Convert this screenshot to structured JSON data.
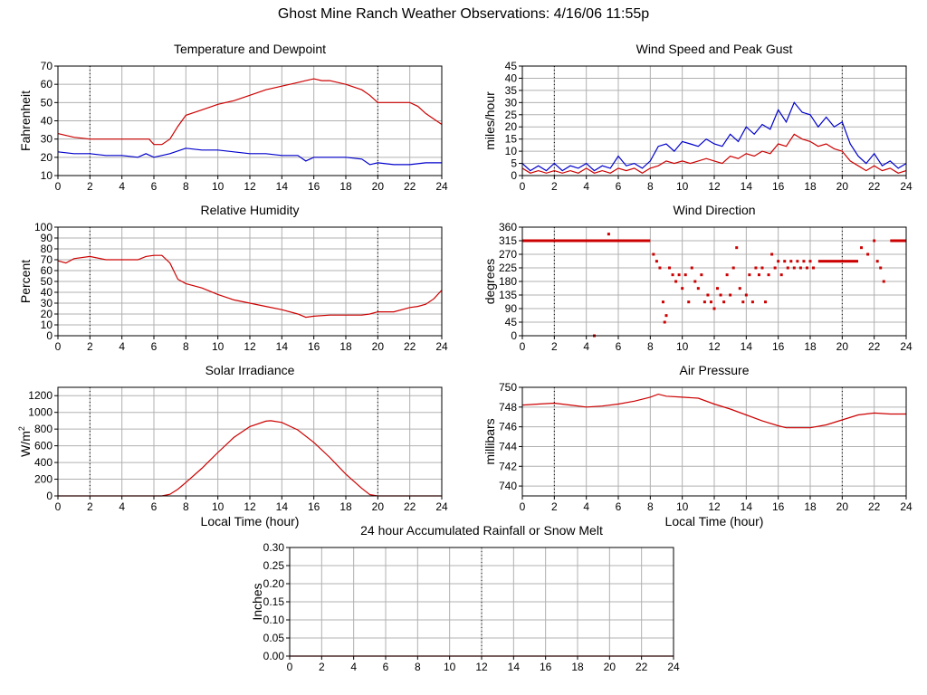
{
  "page_title": "Ghost Mine Ranch Weather Observations: 4/16/06 11:55p",
  "colors": {
    "primary": "#cc0000",
    "secondary": "#0000cc",
    "grid": "#b0b0b0",
    "axis": "#000000"
  },
  "chart_data": [
    {
      "id": "temp",
      "type": "line",
      "title": "Temperature and Dewpoint",
      "xlabel": "",
      "ylabel": "Fahrenheit",
      "xlim": [
        0,
        24
      ],
      "ylim": [
        10,
        70
      ],
      "xticks": [
        "0",
        "2",
        "4",
        "6",
        "8",
        "10",
        "12",
        "14",
        "16",
        "18",
        "20",
        "22",
        "24"
      ],
      "yticks": [
        "10",
        "20",
        "30",
        "40",
        "50",
        "60",
        "70"
      ],
      "grid": true,
      "series": [
        {
          "color": "#cc0000",
          "x": [
            0,
            1,
            2,
            3,
            4,
            5,
            5.7,
            6,
            6.5,
            7,
            7.5,
            8,
            9,
            10,
            11,
            12,
            13,
            14,
            15,
            15.5,
            16,
            16.5,
            17,
            18,
            19,
            19.5,
            20,
            21,
            22,
            22.5,
            23,
            23.5,
            24
          ],
          "y": [
            33,
            31,
            30,
            30,
            30,
            30,
            30,
            27,
            27,
            30,
            37,
            43,
            46,
            49,
            51,
            54,
            57,
            59,
            61,
            62,
            63,
            62,
            62,
            60,
            57,
            54,
            50,
            50,
            50,
            48,
            44,
            41,
            38
          ]
        },
        {
          "color": "#0000cc",
          "x": [
            0,
            1,
            2,
            3,
            4,
            5,
            5.5,
            6,
            7,
            8,
            9,
            10,
            11,
            12,
            13,
            14,
            15,
            15.5,
            16,
            17,
            18,
            19,
            19.5,
            20,
            21,
            22,
            23,
            24
          ],
          "y": [
            23,
            22,
            22,
            21,
            21,
            20,
            22,
            20,
            22,
            25,
            24,
            24,
            23,
            22,
            22,
            21,
            21,
            18,
            20,
            20,
            20,
            19,
            16,
            17,
            16,
            16,
            17,
            17
          ]
        }
      ]
    },
    {
      "id": "wind",
      "type": "line",
      "title": "Wind Speed and Peak Gust",
      "xlabel": "",
      "ylabel": "miles/hour",
      "xlim": [
        0,
        24
      ],
      "ylim": [
        0,
        45
      ],
      "xticks": [
        "0",
        "2",
        "4",
        "6",
        "8",
        "10",
        "12",
        "14",
        "16",
        "18",
        "20",
        "22",
        "24"
      ],
      "yticks": [
        "0",
        "5",
        "10",
        "15",
        "20",
        "25",
        "30",
        "35",
        "40",
        "45"
      ],
      "grid": true,
      "series": [
        {
          "color": "#0000cc",
          "x": [
            0,
            0.5,
            1,
            1.5,
            2,
            2.5,
            3,
            3.5,
            4,
            4.5,
            5,
            5.5,
            6,
            6.5,
            7,
            7.5,
            8,
            8.5,
            9,
            9.5,
            10,
            10.5,
            11,
            11.5,
            12,
            12.5,
            13,
            13.5,
            14,
            14.5,
            15,
            15.5,
            16,
            16.5,
            17,
            17.5,
            18,
            18.5,
            19,
            19.5,
            20,
            20.5,
            21,
            21.5,
            22,
            22.5,
            23,
            23.5,
            24
          ],
          "y": [
            5,
            2,
            4,
            2,
            5,
            2,
            4,
            3,
            5,
            2,
            4,
            3,
            8,
            4,
            5,
            3,
            6,
            12,
            13,
            10,
            14,
            13,
            12,
            15,
            13,
            12,
            17,
            14,
            20,
            17,
            21,
            19,
            27,
            22,
            30,
            26,
            25,
            20,
            24,
            20,
            22,
            13,
            8,
            5,
            9,
            4,
            6,
            3,
            5
          ]
        },
        {
          "color": "#cc0000",
          "x": [
            0,
            0.5,
            1,
            1.5,
            2,
            2.5,
            3,
            3.5,
            4,
            4.5,
            5,
            5.5,
            6,
            6.5,
            7,
            7.5,
            8,
            8.5,
            9,
            9.5,
            10,
            10.5,
            11,
            11.5,
            12,
            12.5,
            13,
            13.5,
            14,
            14.5,
            15,
            15.5,
            16,
            16.5,
            17,
            17.5,
            18,
            18.5,
            19,
            19.5,
            20,
            20.5,
            21,
            21.5,
            22,
            22.5,
            23,
            23.5,
            24
          ],
          "y": [
            3,
            1,
            2,
            1,
            2,
            1,
            2,
            1,
            3,
            1,
            2,
            1,
            3,
            2,
            3,
            1,
            3,
            4,
            6,
            5,
            6,
            5,
            6,
            7,
            6,
            5,
            8,
            7,
            9,
            8,
            10,
            9,
            13,
            12,
            17,
            15,
            14,
            12,
            13,
            11,
            10,
            6,
            4,
            2,
            4,
            2,
            3,
            1,
            2
          ]
        }
      ]
    },
    {
      "id": "rh",
      "type": "line",
      "title": "Relative Humidity",
      "xlabel": "",
      "ylabel": "Percent",
      "xlim": [
        0,
        24
      ],
      "ylim": [
        0,
        100
      ],
      "xticks": [
        "0",
        "2",
        "4",
        "6",
        "8",
        "10",
        "12",
        "14",
        "16",
        "18",
        "20",
        "22",
        "24"
      ],
      "yticks": [
        "0",
        "10",
        "20",
        "30",
        "40",
        "50",
        "60",
        "70",
        "80",
        "90",
        "100"
      ],
      "grid": true,
      "series": [
        {
          "color": "#cc0000",
          "x": [
            0,
            0.5,
            1,
            2,
            3,
            4,
            5,
            5.5,
            6,
            6.5,
            7,
            7.5,
            8,
            9,
            10,
            11,
            12,
            13,
            14,
            15,
            15.5,
            16,
            17,
            18,
            19,
            19.5,
            20,
            21,
            22,
            22.5,
            23,
            23.5,
            24
          ],
          "y": [
            69,
            67,
            71,
            73,
            70,
            70,
            70,
            73,
            74,
            74,
            67,
            52,
            48,
            44,
            38,
            33,
            30,
            27,
            24,
            20,
            17,
            18,
            19,
            19,
            19,
            20,
            22,
            22,
            26,
            27,
            29,
            34,
            42
          ]
        }
      ]
    },
    {
      "id": "dir",
      "type": "scatter",
      "title": "Wind Direction",
      "xlabel": "",
      "ylabel": "degrees",
      "xlim": [
        0,
        24
      ],
      "ylim": [
        0,
        360
      ],
      "xticks": [
        "0",
        "2",
        "4",
        "6",
        "8",
        "10",
        "12",
        "14",
        "16",
        "18",
        "20",
        "22",
        "24"
      ],
      "yticks": [
        "0",
        "45",
        "90",
        "135",
        "180",
        "225",
        "270",
        "315",
        "360"
      ],
      "grid": true,
      "series": [
        {
          "color": "#cc0000",
          "x": [
            4.5,
            5.4,
            8.2,
            8.4,
            8.6,
            8.8,
            8.9,
            9.0,
            9.2,
            9.4,
            9.6,
            9.8,
            10.0,
            10.2,
            10.4,
            10.6,
            10.8,
            11.0,
            11.2,
            11.4,
            11.6,
            11.8,
            12.0,
            12.2,
            12.4,
            12.6,
            12.8,
            13.0,
            13.2,
            13.4,
            13.6,
            13.8,
            14.0,
            14.2,
            14.4,
            14.6,
            14.8,
            15.0,
            15.2,
            15.4,
            15.6,
            15.8,
            16.0,
            16.2,
            16.4,
            16.6,
            16.8,
            17.0,
            17.2,
            17.4,
            17.6,
            17.8,
            18.0,
            18.2,
            21.2,
            21.6,
            22.0,
            22.2,
            22.4,
            22.6
          ],
          "y": [
            0,
            337,
            270,
            247,
            225,
            112,
            45,
            67,
            225,
            202,
            180,
            202,
            157,
            202,
            112,
            225,
            180,
            157,
            202,
            112,
            135,
            112,
            90,
            157,
            135,
            112,
            202,
            135,
            225,
            292,
            157,
            112,
            135,
            202,
            112,
            225,
            202,
            225,
            112,
            202,
            270,
            225,
            247,
            202,
            247,
            225,
            247,
            225,
            247,
            225,
            247,
            225,
            247,
            225,
            292,
            270,
            315,
            247,
            225,
            180
          ]
        }
      ],
      "bands": [
        {
          "x0": 0,
          "x1": 8.0,
          "y": 315
        },
        {
          "x0": 18.5,
          "x1": 21.0,
          "y": 247
        },
        {
          "x0": 23.0,
          "x1": 24,
          "y": 315
        }
      ]
    },
    {
      "id": "solar",
      "type": "line",
      "title": "Solar Irradiance",
      "xlabel": "Local Time (hour)",
      "ylabel": "W/m",
      "xlim": [
        0,
        24
      ],
      "ylim": [
        0,
        1300
      ],
      "xticks": [
        "0",
        "2",
        "4",
        "6",
        "8",
        "10",
        "12",
        "14",
        "16",
        "18",
        "20",
        "22",
        "24"
      ],
      "yticks": [
        "0",
        "200",
        "400",
        "600",
        "800",
        "1000",
        "1200"
      ],
      "grid": true,
      "series": [
        {
          "color": "#cc0000",
          "x": [
            0,
            6.5,
            7,
            7.5,
            8,
            9,
            10,
            11,
            12,
            13,
            13.3,
            14,
            15,
            16,
            17,
            18,
            19,
            19.5,
            20,
            24
          ],
          "y": [
            0,
            0,
            20,
            80,
            160,
            330,
            520,
            700,
            830,
            895,
            900,
            880,
            790,
            640,
            460,
            260,
            90,
            15,
            0,
            0
          ]
        }
      ]
    },
    {
      "id": "pressure",
      "type": "line",
      "title": "Air Pressure",
      "xlabel": "Local Time (hour)",
      "ylabel": "millibars",
      "xlim": [
        0,
        24
      ],
      "ylim": [
        739,
        750
      ],
      "xticks": [
        "0",
        "2",
        "4",
        "6",
        "8",
        "10",
        "12",
        "14",
        "16",
        "18",
        "20",
        "22",
        "24"
      ],
      "yticks": [
        "740",
        "742",
        "744",
        "746",
        "748",
        "750"
      ],
      "grid": true,
      "series": [
        {
          "color": "#cc0000",
          "x": [
            0,
            1,
            2,
            3,
            4,
            5,
            6,
            7,
            8,
            8.5,
            9,
            10,
            11,
            12,
            13,
            14,
            15,
            16,
            16.5,
            17,
            18,
            19,
            20,
            21,
            22,
            23,
            24
          ],
          "y": [
            748.2,
            748.3,
            748.4,
            748.2,
            748.0,
            748.1,
            748.3,
            748.6,
            749.0,
            749.3,
            749.1,
            749.0,
            748.9,
            748.3,
            747.8,
            747.2,
            746.6,
            746.1,
            745.9,
            745.9,
            745.9,
            746.2,
            746.7,
            747.2,
            747.4,
            747.3,
            747.3
          ]
        }
      ]
    },
    {
      "id": "rain",
      "type": "line",
      "title": "24 hour Accumulated Rainfall or Snow Melt",
      "xlabel": "",
      "ylabel": "Inches",
      "xlim": [
        0,
        24
      ],
      "ylim": [
        0,
        0.3
      ],
      "xticks": [
        "0",
        "2",
        "4",
        "6",
        "8",
        "10",
        "12",
        "14",
        "16",
        "18",
        "20",
        "22",
        "24"
      ],
      "yticks": [
        "0.00",
        "0.05",
        "0.10",
        "0.15",
        "0.20",
        "0.25",
        "0.30"
      ],
      "grid": true,
      "series": [
        {
          "color": "#cc0000",
          "x": [
            0,
            24
          ],
          "y": [
            0,
            0
          ]
        }
      ]
    }
  ]
}
